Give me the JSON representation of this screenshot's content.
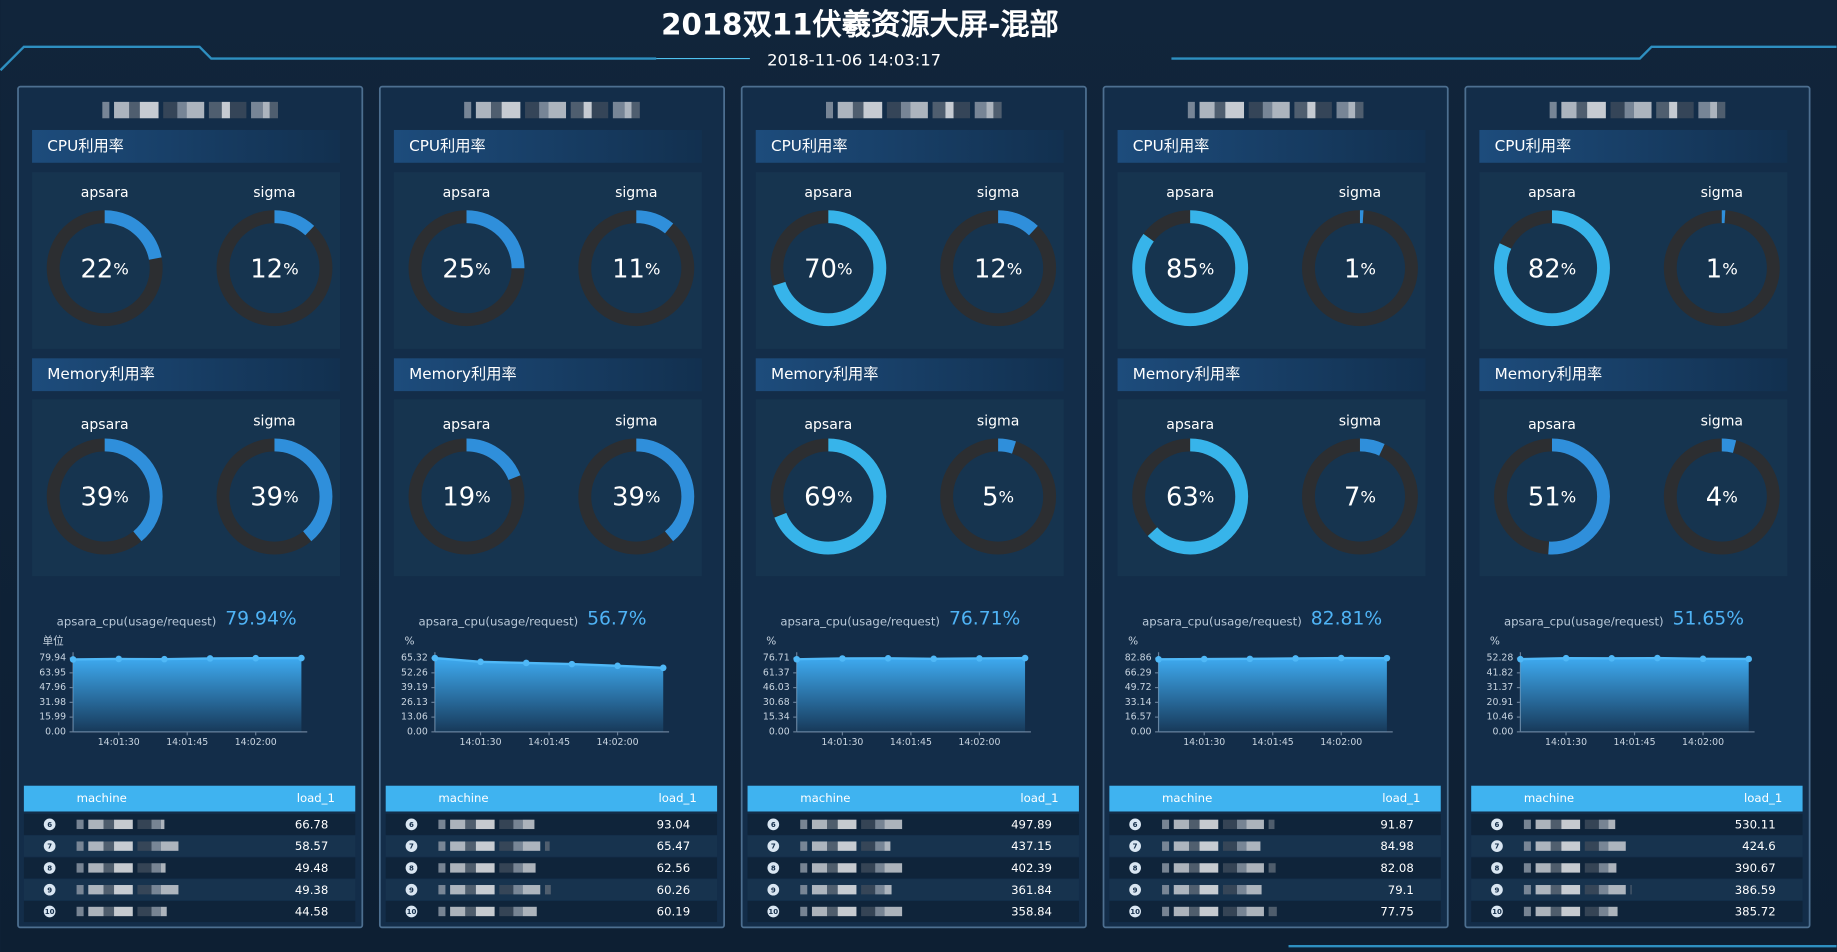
{
  "header": {
    "title": "2018双11伏羲资源大屏-混部",
    "time": "2018-11-06 14:03:17"
  },
  "labels": {
    "cpu": "CPU利用率",
    "memory": "Memory利用率",
    "apsara": "apsara",
    "sigma": "sigma",
    "percent": "%",
    "machine": "machine",
    "load": "load_1"
  },
  "panels": [
    {
      "cpu": {
        "apsara": 22,
        "sigma": 12
      },
      "memory": {
        "apsara": 39,
        "sigma": 39
      },
      "trend": {
        "label": "apsara_cpu(usage/request)",
        "current": 79.94,
        "unit_label": "单位",
        "x": [
          80,
          90,
          100,
          110,
          120,
          130
        ],
        "values": [
          78.5,
          79.0,
          78.8,
          79.6,
          79.8,
          79.94
        ],
        "xlim": [
          80,
          130
        ],
        "ylim": [
          0,
          79.94
        ],
        "xticks": [
          {
            "value": 90,
            "label": "14:01:30"
          },
          {
            "value": 105,
            "label": "14:01:45"
          },
          {
            "value": 120,
            "label": "14:02:00"
          }
        ],
        "yticks": [
          {
            "value": 0,
            "label": "0.00"
          },
          {
            "value": 15.99,
            "label": "15.99"
          },
          {
            "value": 31.98,
            "label": "31.98"
          },
          {
            "value": 47.96,
            "label": "47.96"
          },
          {
            "value": 63.95,
            "label": "63.95"
          },
          {
            "value": 79.94,
            "label": "79.94"
          }
        ]
      },
      "rows": [
        {
          "rank": 6,
          "load": 66.78
        },
        {
          "rank": 7,
          "load": 58.57
        },
        {
          "rank": 8,
          "load": 49.48
        },
        {
          "rank": 9,
          "load": 49.38
        },
        {
          "rank": 10,
          "load": 44.58
        }
      ]
    },
    {
      "cpu": {
        "apsara": 25,
        "sigma": 11
      },
      "memory": {
        "apsara": 19,
        "sigma": 39
      },
      "trend": {
        "label": "apsara_cpu(usage/request)",
        "current": 56.7,
        "unit_label": "%",
        "x": [
          80,
          90,
          100,
          110,
          120,
          130
        ],
        "values": [
          65.32,
          62.0,
          61.0,
          60.0,
          58.5,
          56.7
        ],
        "xlim": [
          80,
          130
        ],
        "ylim": [
          0,
          65.32
        ],
        "xticks": [
          {
            "value": 90,
            "label": "14:01:30"
          },
          {
            "value": 105,
            "label": "14:01:45"
          },
          {
            "value": 120,
            "label": "14:02:00"
          }
        ],
        "yticks": [
          {
            "value": 0,
            "label": "0.00"
          },
          {
            "value": 13.06,
            "label": "13.06"
          },
          {
            "value": 26.13,
            "label": "26.13"
          },
          {
            "value": 39.19,
            "label": "39.19"
          },
          {
            "value": 52.26,
            "label": "52.26"
          },
          {
            "value": 65.32,
            "label": "65.32"
          }
        ]
      },
      "rows": [
        {
          "rank": 6,
          "load": 93.04
        },
        {
          "rank": 7,
          "load": 65.47
        },
        {
          "rank": 8,
          "load": 62.56
        },
        {
          "rank": 9,
          "load": 60.26
        },
        {
          "rank": 10,
          "load": 60.19
        }
      ]
    },
    {
      "cpu": {
        "apsara": 70,
        "sigma": 12
      },
      "memory": {
        "apsara": 69,
        "sigma": 5
      },
      "trend": {
        "label": "apsara_cpu(usage/request)",
        "current": 76.71,
        "unit_label": "%",
        "x": [
          80,
          90,
          100,
          110,
          120,
          130
        ],
        "values": [
          75.5,
          76.3,
          76.5,
          76.0,
          76.4,
          76.71
        ],
        "xlim": [
          80,
          130
        ],
        "ylim": [
          0,
          76.71
        ],
        "xticks": [
          {
            "value": 90,
            "label": "14:01:30"
          },
          {
            "value": 105,
            "label": "14:01:45"
          },
          {
            "value": 120,
            "label": "14:02:00"
          }
        ],
        "yticks": [
          {
            "value": 0,
            "label": "0.00"
          },
          {
            "value": 15.34,
            "label": "15.34"
          },
          {
            "value": 30.68,
            "label": "30.68"
          },
          {
            "value": 46.03,
            "label": "46.03"
          },
          {
            "value": 61.37,
            "label": "61.37"
          },
          {
            "value": 76.71,
            "label": "76.71"
          }
        ]
      },
      "rows": [
        {
          "rank": 6,
          "load": 497.89
        },
        {
          "rank": 7,
          "load": 437.15
        },
        {
          "rank": 8,
          "load": 402.39
        },
        {
          "rank": 9,
          "load": 361.84
        },
        {
          "rank": 10,
          "load": 358.84
        }
      ]
    },
    {
      "cpu": {
        "apsara": 85,
        "sigma": 1
      },
      "memory": {
        "apsara": 63,
        "sigma": 7
      },
      "trend": {
        "label": "apsara_cpu(usage/request)",
        "current": 82.81,
        "unit_label": "%",
        "x": [
          80,
          90,
          100,
          110,
          120,
          130
        ],
        "values": [
          81.5,
          81.8,
          82.0,
          82.5,
          82.86,
          82.81
        ],
        "xlim": [
          80,
          130
        ],
        "ylim": [
          0,
          82.86
        ],
        "xticks": [
          {
            "value": 90,
            "label": "14:01:30"
          },
          {
            "value": 105,
            "label": "14:01:45"
          },
          {
            "value": 120,
            "label": "14:02:00"
          }
        ],
        "yticks": [
          {
            "value": 0,
            "label": "0.00"
          },
          {
            "value": 16.57,
            "label": "16.57"
          },
          {
            "value": 33.14,
            "label": "33.14"
          },
          {
            "value": 49.72,
            "label": "49.72"
          },
          {
            "value": 66.29,
            "label": "66.29"
          },
          {
            "value": 82.86,
            "label": "82.86"
          }
        ]
      },
      "rows": [
        {
          "rank": 6,
          "load": 91.87
        },
        {
          "rank": 7,
          "load": 84.98
        },
        {
          "rank": 8,
          "load": 82.08
        },
        {
          "rank": 9,
          "load": 79.1
        },
        {
          "rank": 10,
          "load": 77.75
        }
      ]
    },
    {
      "cpu": {
        "apsara": 82,
        "sigma": 1
      },
      "memory": {
        "apsara": 51,
        "sigma": 4
      },
      "trend": {
        "label": "apsara_cpu(usage/request)",
        "current": 51.65,
        "unit_label": "%",
        "x": [
          80,
          90,
          100,
          110,
          120,
          130
        ],
        "values": [
          51.5,
          52.2,
          52.1,
          52.28,
          51.8,
          51.65
        ],
        "xlim": [
          80,
          130
        ],
        "ylim": [
          0,
          52.28
        ],
        "xticks": [
          {
            "value": 90,
            "label": "14:01:30"
          },
          {
            "value": 105,
            "label": "14:01:45"
          },
          {
            "value": 120,
            "label": "14:02:00"
          }
        ],
        "yticks": [
          {
            "value": 0,
            "label": "0.00"
          },
          {
            "value": 10.46,
            "label": "10.46"
          },
          {
            "value": 20.91,
            "label": "20.91"
          },
          {
            "value": 31.37,
            "label": "31.37"
          },
          {
            "value": 41.82,
            "label": "41.82"
          },
          {
            "value": 52.28,
            "label": "52.28"
          }
        ]
      },
      "rows": [
        {
          "rank": 6,
          "load": 530.11
        },
        {
          "rank": 7,
          "load": 424.6
        },
        {
          "rank": 8,
          "load": 390.67
        },
        {
          "rank": 9,
          "load": 386.59
        },
        {
          "rank": 10,
          "load": 385.72
        }
      ]
    }
  ]
}
